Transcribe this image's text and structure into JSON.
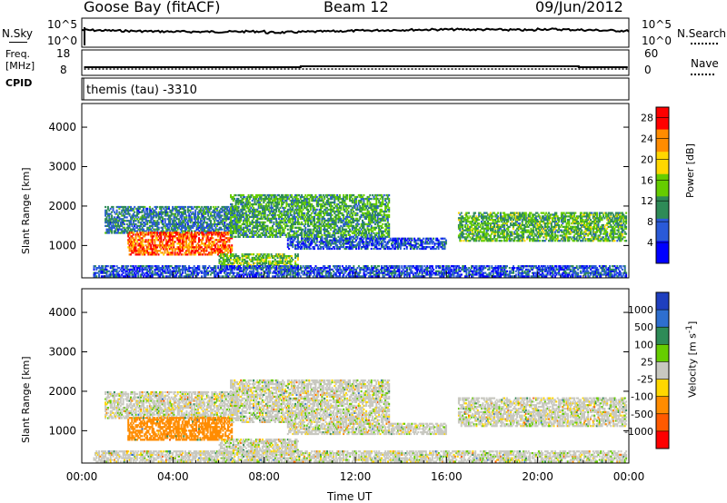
{
  "header": {
    "station": "Goose Bay (fitACF)",
    "beam": "Beam 12",
    "date": "09/Jun/2012"
  },
  "summary": {
    "nsky_label": "N.Sky",
    "nsky_ticks": [
      "10^5",
      "10^0"
    ],
    "nsearch_label": "N.Search",
    "nsearch_ticks": [
      "10^5",
      "10^0"
    ],
    "freq_label": [
      "Freq.",
      "[MHz]"
    ],
    "freq_ticks": [
      "18",
      "8"
    ],
    "nave_label": "Nave",
    "nave_ticks": [
      "60",
      "0"
    ],
    "cpid_label": "CPID",
    "cpid_text": "themis (tau) -3310"
  },
  "chart_data": [
    {
      "type": "heatmap",
      "title": "",
      "xlabel": "Time UT",
      "ylabel": "Slant Range [km]",
      "x_ticks": [
        "00:00",
        "04:00",
        "08:00",
        "12:00",
        "16:00",
        "20:00",
        "00:00"
      ],
      "x_range_hours": [
        0,
        24
      ],
      "y_ticks": [
        1000,
        2000,
        3000,
        4000
      ],
      "y_range_km": [
        180,
        4600
      ],
      "colorbar": {
        "label": "Power [dB]",
        "ticks": [
          4,
          8,
          12,
          16,
          20,
          24,
          28
        ],
        "range": [
          0,
          30
        ],
        "colors": [
          "#0000ff",
          "#2a5ad8",
          "#2e8b57",
          "#66cd00",
          "#ffd700",
          "#ff8c00",
          "#ff0000"
        ]
      },
      "regions": [
        {
          "t0": 1.0,
          "t1": 6.9,
          "r0": 1300,
          "r1": 2000,
          "value": 9
        },
        {
          "t0": 2.0,
          "t1": 6.6,
          "r0": 750,
          "r1": 1350,
          "value": 25
        },
        {
          "t0": 6.0,
          "t1": 9.5,
          "r0": 400,
          "r1": 800,
          "value": 14
        },
        {
          "t0": 6.5,
          "t1": 13.5,
          "r0": 1200,
          "r1": 2300,
          "value": 12
        },
        {
          "t0": 9.0,
          "t1": 16.0,
          "r0": 900,
          "r1": 1200,
          "value": 6
        },
        {
          "t0": 16.5,
          "t1": 23.9,
          "r0": 1100,
          "r1": 1850,
          "value": 13
        },
        {
          "t0": 0.5,
          "t1": 23.9,
          "r0": 200,
          "r1": 500,
          "value": 6
        }
      ]
    },
    {
      "type": "heatmap",
      "title": "",
      "xlabel": "Time UT",
      "ylabel": "Slant Range [km]",
      "x_ticks": [
        "00:00",
        "04:00",
        "08:00",
        "12:00",
        "16:00",
        "20:00",
        "00:00"
      ],
      "x_range_hours": [
        0,
        24
      ],
      "y_ticks": [
        1000,
        2000,
        3000,
        4000
      ],
      "y_range_km": [
        180,
        4600
      ],
      "colorbar": {
        "label": "Velocity [m s^-1]",
        "ticks": [
          "1000",
          "500",
          "100",
          "25",
          "-25",
          "-100",
          "-500",
          "-1000"
        ],
        "colors": [
          "#1f3fbf",
          "#2e6fcf",
          "#2e8b57",
          "#66cd00",
          "#c8c8c0",
          "#ffd700",
          "#ff8c00",
          "#ff5a00",
          "#ff0000"
        ]
      },
      "regions": [
        {
          "t0": 1.0,
          "t1": 6.9,
          "r0": 1300,
          "r1": 2000,
          "value": 0
        },
        {
          "t0": 2.0,
          "t1": 6.6,
          "r0": 750,
          "r1": 1350,
          "value": -150
        },
        {
          "t0": 6.0,
          "t1": 9.5,
          "r0": 400,
          "r1": 800,
          "value": 0
        },
        {
          "t0": 6.5,
          "t1": 13.5,
          "r0": 1200,
          "r1": 2300,
          "value": 0
        },
        {
          "t0": 9.0,
          "t1": 16.0,
          "r0": 900,
          "r1": 1200,
          "value": 0
        },
        {
          "t0": 16.5,
          "t1": 23.9,
          "r0": 1100,
          "r1": 1850,
          "value": 0
        },
        {
          "t0": 0.5,
          "t1": 23.9,
          "r0": 200,
          "r1": 500,
          "value": 0
        }
      ]
    }
  ]
}
